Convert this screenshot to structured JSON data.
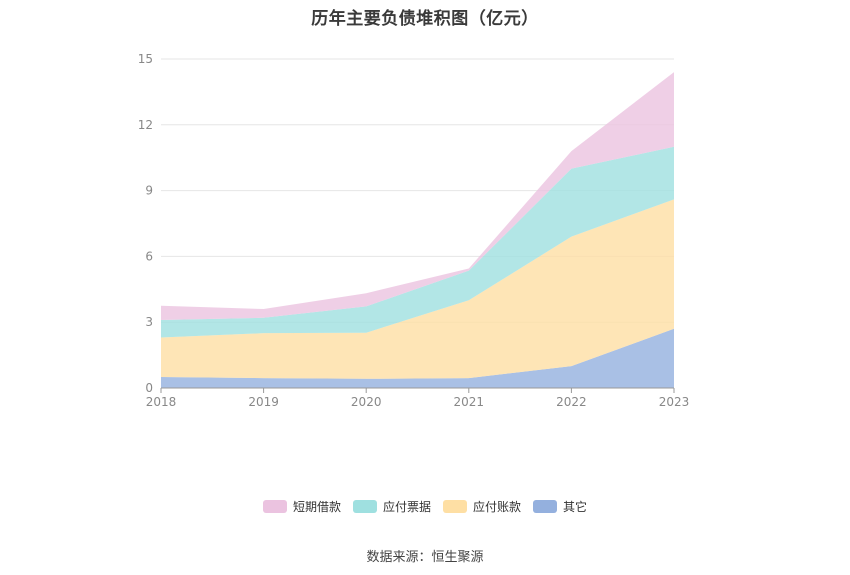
{
  "chart_data": {
    "type": "area",
    "stacked": true,
    "title": "历年主要负债堆积图（亿元）",
    "x": [
      "2018",
      "2019",
      "2020",
      "2021",
      "2022",
      "2023"
    ],
    "y_ticks": [
      "0",
      "3",
      "6",
      "9",
      "12",
      "15"
    ],
    "ylim": [
      0,
      15
    ],
    "grid": true,
    "legend_position": "bottom",
    "series": [
      {
        "name": "其它",
        "color": "#94b0de",
        "values": [
          0.5,
          0.45,
          0.42,
          0.45,
          1.0,
          2.7
        ]
      },
      {
        "name": "应付账款",
        "color": "#fedfa4",
        "values": [
          1.8,
          2.05,
          2.1,
          3.55,
          5.9,
          5.9
        ]
      },
      {
        "name": "应付票据",
        "color": "#9fe0e0",
        "values": [
          0.8,
          0.7,
          1.2,
          1.35,
          3.1,
          2.4
        ]
      },
      {
        "name": "短期借款",
        "color": "#ebc3e0",
        "values": [
          0.65,
          0.4,
          0.6,
          0.1,
          0.8,
          3.4
        ]
      }
    ]
  },
  "legend_order": [
    3,
    2,
    1,
    0
  ],
  "source": "数据来源：恒生聚源"
}
